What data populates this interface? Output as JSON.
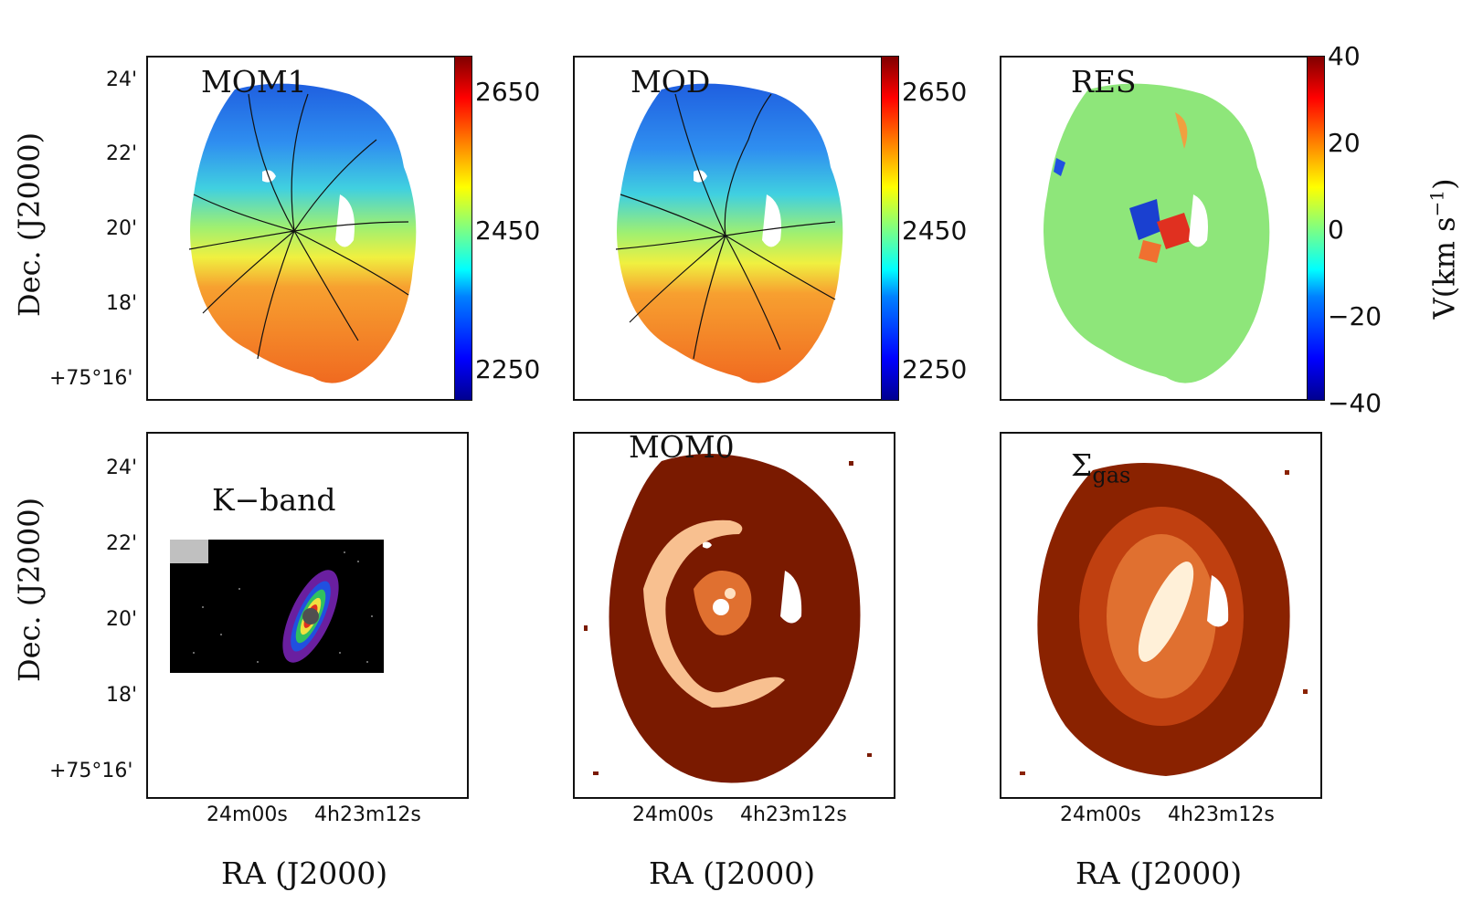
{
  "chart_data": [
    {
      "type": "heatmap",
      "title": "MOM1",
      "ylabel": "Dec. (J2000)",
      "xlabel": "",
      "yticks": [
        "24'",
        "22'",
        "20'",
        "18'",
        "+75°16'"
      ],
      "colorbar": {
        "ticks": [
          "2650",
          "2450",
          "2250"
        ],
        "range": [
          2200,
          2720
        ],
        "cmap": "jet"
      }
    },
    {
      "type": "heatmap",
      "title": "MOD",
      "colorbar": {
        "ticks": [
          "2650",
          "2450",
          "2250"
        ],
        "range": [
          2200,
          2720
        ],
        "cmap": "jet"
      }
    },
    {
      "type": "heatmap",
      "title": "RES",
      "colorbar": {
        "label": "V(km s",
        "label_sup": "−1",
        "label_close": ")",
        "ticks": [
          "40",
          "20",
          "0",
          "−20",
          "−40"
        ],
        "range": [
          -40,
          40
        ],
        "cmap": "jet"
      }
    },
    {
      "type": "heatmap",
      "title": "K−band",
      "ylabel": "Dec. (J2000)",
      "xlabel": "RA (J2000)",
      "yticks": [
        "24'",
        "22'",
        "20'",
        "18'",
        "+75°16'"
      ],
      "xticks": [
        "24m00s",
        "4h23m12s"
      ]
    },
    {
      "type": "heatmap",
      "title": "MOM0",
      "xlabel": "RA (J2000)",
      "xticks": [
        "24m00s",
        "4h23m12s"
      ]
    },
    {
      "type": "heatmap",
      "title": "Σ",
      "title_sub": "gas",
      "xlabel": "RA (J2000)",
      "xticks": [
        "24m00s",
        "4h23m12s"
      ]
    }
  ]
}
